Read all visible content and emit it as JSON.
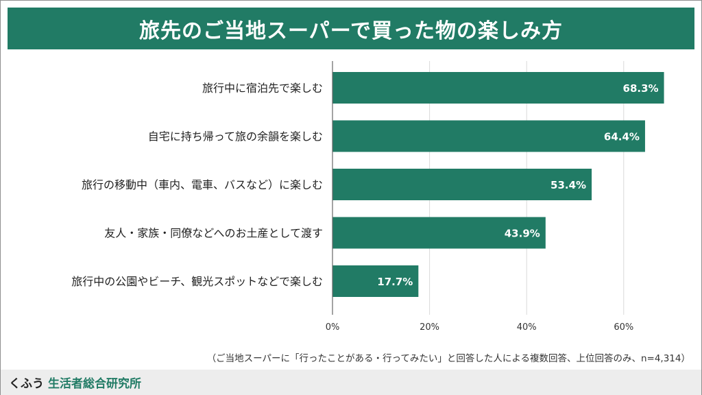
{
  "title": "旅先のご当地スーパーで買った物の楽しみ方",
  "footer": {
    "brand": "くふう",
    "org": "生活者総合研究所"
  },
  "colors": {
    "bar": "#217b65",
    "header": "#217b65",
    "grid": "#d9d9d9",
    "axis": "#666666"
  },
  "chart_data": {
    "type": "bar",
    "orientation": "horizontal",
    "categories": [
      "旅行中に宿泊先で楽しむ",
      "自宅に持ち帰って旅の余韻を楽しむ",
      "旅行の移動中（車内、電車、バスなど）に楽しむ",
      "友人・家族・同僚などへのお土産として渡す",
      "旅行中の公園やビーチ、観光スポットなどで楽しむ"
    ],
    "values": [
      68.3,
      64.4,
      53.4,
      43.9,
      17.7
    ],
    "value_labels": [
      "68.3%",
      "64.4%",
      "53.4%",
      "43.9%",
      "17.7%"
    ],
    "xlim": [
      0,
      70
    ],
    "xticks": [
      0,
      20,
      40,
      60
    ],
    "xtick_labels": [
      "0%",
      "20%",
      "40%",
      "60%"
    ],
    "grid": true,
    "note": "（ご当地スーパーに「行ったことがある・行ってみたい」と回答した人による複数回答、上位回答のみ、n=4,314）"
  }
}
